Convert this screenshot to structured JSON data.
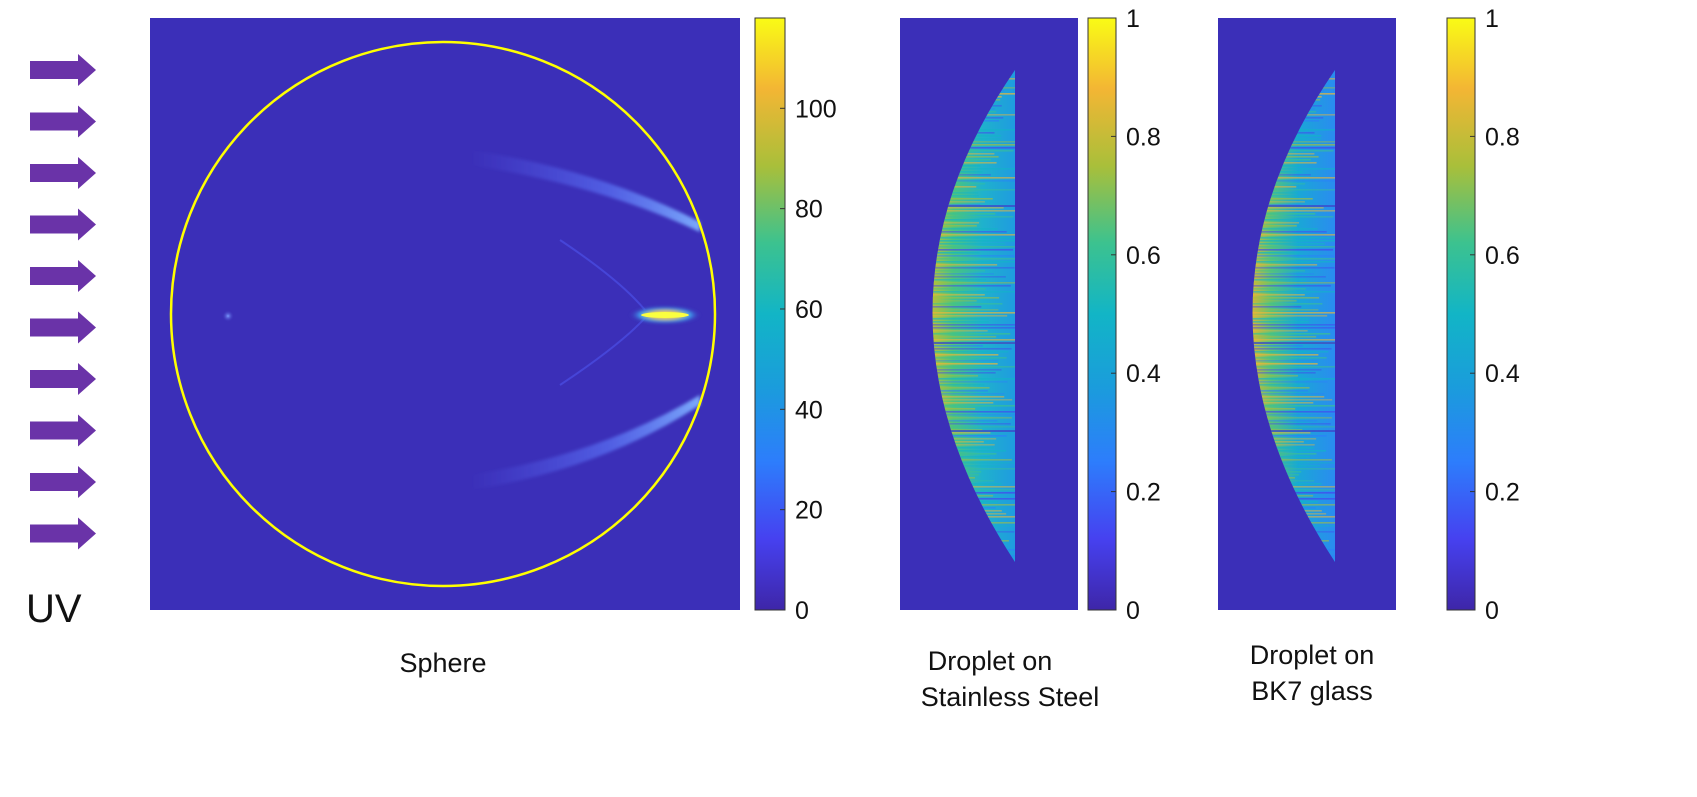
{
  "source_label": "UV",
  "colors": {
    "background_field": "#3b2fb8",
    "boundary": "#ffff00",
    "arrow": "#6a33a8"
  },
  "incident_arrows": {
    "count": 10,
    "direction": "right"
  },
  "chart_data": [
    {
      "type": "heatmap",
      "caption": "Sphere",
      "shape": "sphere",
      "colorbar": {
        "min": 0,
        "max": 118,
        "ticks": [
          0,
          20,
          40,
          60,
          80,
          100
        ]
      },
      "features": [
        {
          "kind": "focal-spot",
          "intensity": 115
        },
        {
          "kind": "weak-spot",
          "intensity": 25
        },
        {
          "kind": "caustic-upper",
          "intensity": 30
        },
        {
          "kind": "caustic-lower",
          "intensity": 30
        }
      ]
    },
    {
      "type": "heatmap",
      "caption_lines": [
        "Droplet on",
        "Stainless Steel"
      ],
      "shape": "droplet",
      "colorbar": {
        "min": 0,
        "max": 1,
        "ticks": [
          0,
          0.2,
          0.4,
          0.6,
          0.8,
          1
        ]
      },
      "intensity_profile": {
        "edge": 0.8,
        "center": 0.5,
        "flat_side": 0.45
      }
    },
    {
      "type": "heatmap",
      "caption_lines": [
        "Droplet on",
        "BK7 glass"
      ],
      "shape": "droplet",
      "colorbar": {
        "min": 0,
        "max": 1,
        "ticks": [
          0,
          0.2,
          0.4,
          0.6,
          0.8,
          1
        ]
      },
      "intensity_profile": {
        "edge": 0.8,
        "center": 0.45,
        "flat_side": 0.4
      }
    }
  ]
}
